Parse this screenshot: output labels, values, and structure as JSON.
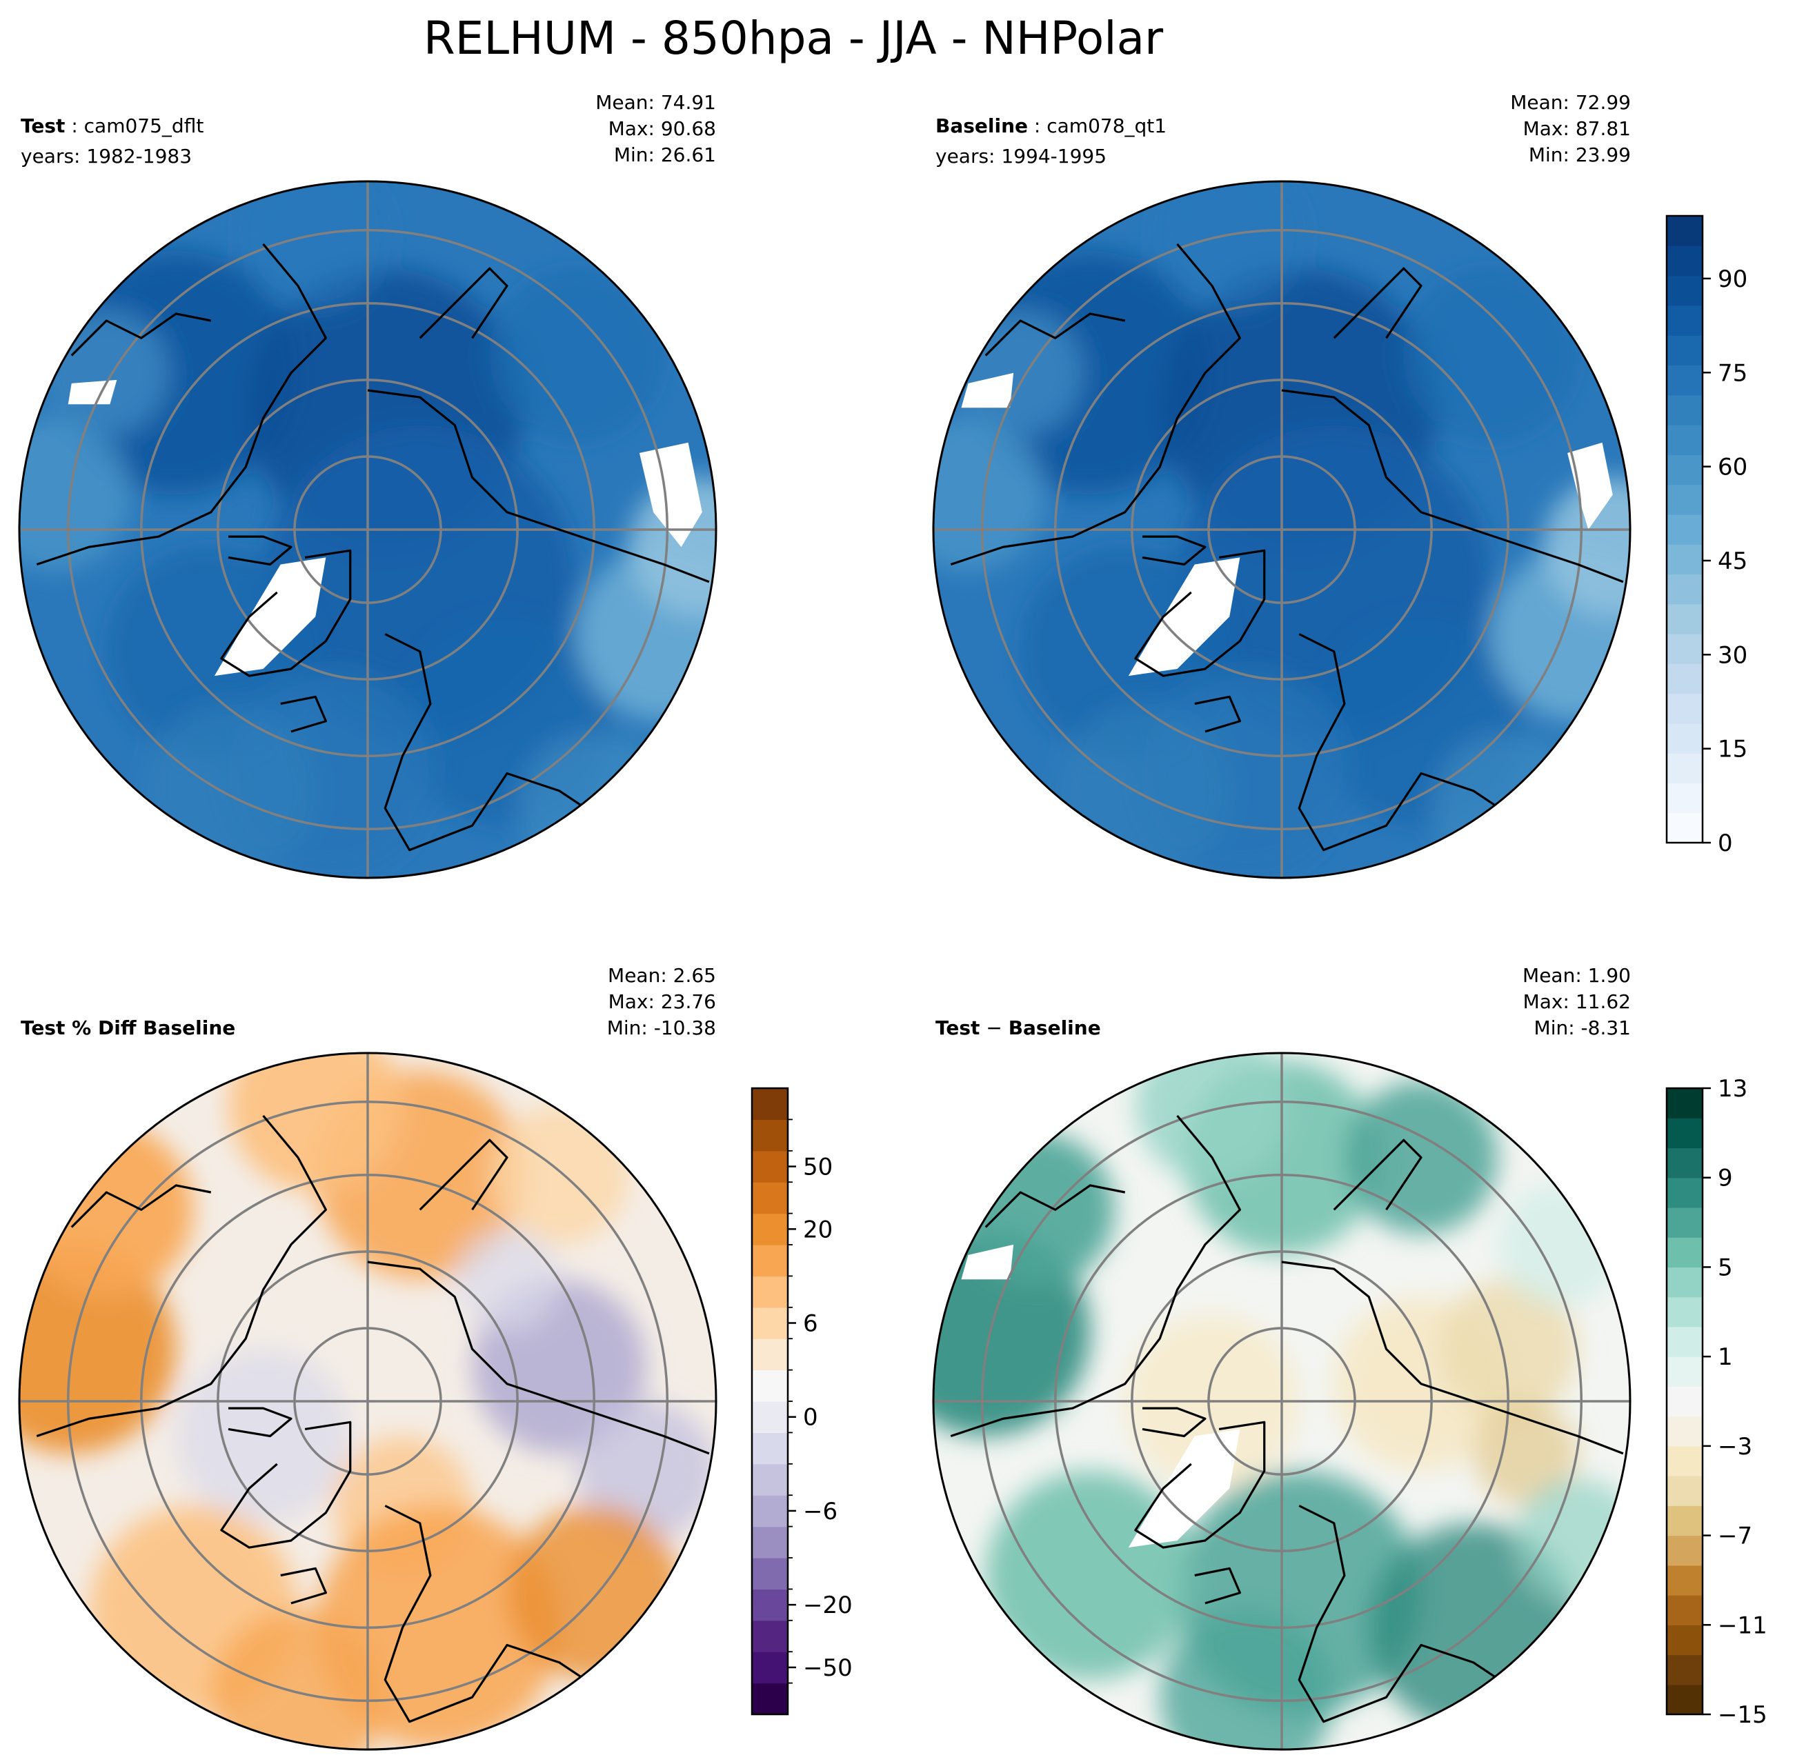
{
  "figure": {
    "title": "RELHUM - 850hpa - JJA - NHPolar"
  },
  "panels": [
    {
      "id": "test",
      "left_label_bold": "Test",
      "left_label_sep": " : ",
      "left_label_rest": "cam075_dflt",
      "left_label_line2": "years: 1982-1983",
      "stats": [
        "Mean: 74.91",
        "Max: 90.68",
        "Min: 26.61"
      ],
      "palette": "blues"
    },
    {
      "id": "baseline",
      "left_label_bold": "Baseline",
      "left_label_sep": " : ",
      "left_label_rest": "cam078_qt1",
      "left_label_line2": "years: 1994-1995",
      "stats": [
        "Mean: 72.99",
        "Max: 87.81",
        "Min: 23.99"
      ],
      "palette": "blues"
    },
    {
      "id": "pctdiff",
      "left_label_bold": "Test % Diff Baseline",
      "left_label_sep": "",
      "left_label_rest": "",
      "left_label_line2": "",
      "stats": [
        "Mean:  2.65",
        "Max: 23.76",
        "Min: -10.38"
      ],
      "palette": "purple-orange"
    },
    {
      "id": "diff",
      "left_label_bold": "Test",
      "left_label_sep": " − ",
      "left_label_rest": "Baseline",
      "left_label_rest_bold": true,
      "left_label_line2": "",
      "stats": [
        "Mean:  1.90",
        "Max: 11.62",
        "Min: -8.31"
      ],
      "palette": "brown-teal"
    }
  ],
  "chart_data": [
    {
      "type": "heatmap",
      "panel": "test",
      "projection": "north-polar-stereographic",
      "title": "",
      "mean": 74.91,
      "max": 90.68,
      "min": 26.61,
      "colorbar": "shared-main"
    },
    {
      "type": "heatmap",
      "panel": "baseline",
      "projection": "north-polar-stereographic",
      "title": "",
      "mean": 72.99,
      "max": 87.81,
      "min": 23.99,
      "colorbar": "shared-main"
    },
    {
      "type": "heatmap",
      "panel": "pctdiff",
      "projection": "north-polar-stereographic",
      "title": "",
      "mean": 2.65,
      "max": 23.76,
      "min": -10.38,
      "colorbar": "pctdiff"
    },
    {
      "type": "heatmap",
      "panel": "diff",
      "projection": "north-polar-stereographic",
      "title": "",
      "mean": 1.9,
      "max": 11.62,
      "min": -8.31,
      "colorbar": "diff"
    }
  ],
  "colorbars": {
    "main": {
      "range": [
        0,
        100
      ],
      "tick_values": [
        0,
        15,
        30,
        45,
        60,
        75,
        90
      ],
      "tick_labels": [
        "0",
        "15",
        "30",
        "45",
        "60",
        "75",
        "90"
      ],
      "colors": [
        "#f7fbff",
        "#eef5fc",
        "#e3eef9",
        "#d8e7f5",
        "#cfe1f2",
        "#c3daee",
        "#b4d3e9",
        "#a2cbe2",
        "#8fc1de",
        "#7cb7da",
        "#69acd5",
        "#58a1cf",
        "#4a96c9",
        "#3d8bc3",
        "#3181bd",
        "#2474b7",
        "#1a68ae",
        "#115ca5",
        "#0b4f97",
        "#08458a",
        "#083a7a"
      ]
    },
    "pctdiff": {
      "tick_labels": [
        "−50",
        "−20",
        "−6",
        "0",
        "6",
        "20",
        "50"
      ],
      "tick_level_index": [
        1,
        3,
        6,
        9,
        12,
        15,
        17
      ],
      "colors": [
        "#2d004b",
        "#441272",
        "#552681",
        "#69479a",
        "#7f6bae",
        "#9b8fc1",
        "#b2abd2",
        "#c6c3df",
        "#d8d9ea",
        "#eaeaf2",
        "#f7f7f7",
        "#fbe8d1",
        "#fdd7a7",
        "#fdc07e",
        "#f8a652",
        "#eb8f2f",
        "#d8771b",
        "#c0620f",
        "#a15009",
        "#7f3b08"
      ],
      "minor_tick_count": 20
    },
    "diff": {
      "range": [
        -15,
        13
      ],
      "tick_values": [
        -15,
        -11,
        -7,
        -3,
        1,
        5,
        9,
        13
      ],
      "tick_labels": [
        "−15",
        "−11",
        "−7",
        "−3",
        "1",
        "5",
        "9",
        "13"
      ],
      "colors": [
        "#543005",
        "#6e3f0a",
        "#8c510a",
        "#a66519",
        "#bf812d",
        "#d3a55d",
        "#dfc27d",
        "#ecdcb0",
        "#f6e8c3",
        "#f5f0e1",
        "#f5f5f5",
        "#e6f4f1",
        "#d0ede7",
        "#b2e2d7",
        "#93d3c5",
        "#6fbfad",
        "#4da598",
        "#2f8c80",
        "#1a7268",
        "#055a50",
        "#003c30"
      ]
    }
  }
}
